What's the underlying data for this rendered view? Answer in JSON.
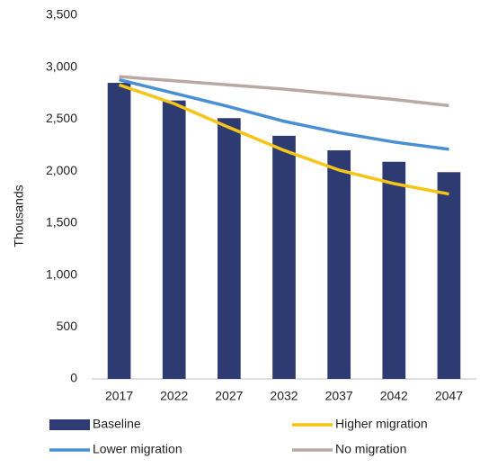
{
  "chart_data": {
    "type": "combo",
    "y_label": "Thousands",
    "categories": [
      "2017",
      "2022",
      "2027",
      "2032",
      "2037",
      "2042",
      "2047"
    ],
    "series": [
      {
        "name": "Baseline",
        "type": "bar",
        "color": "#2e3a72",
        "values": [
          2850,
          2680,
          2510,
          2340,
          2200,
          2090,
          1990
        ]
      },
      {
        "name": "Higher migration",
        "type": "line",
        "color": "#f5c518",
        "values": [
          2830,
          2650,
          2420,
          2200,
          2010,
          1880,
          1780
        ]
      },
      {
        "name": "Lower migration",
        "type": "line",
        "color": "#4a8fd4",
        "values": [
          2880,
          2750,
          2620,
          2480,
          2370,
          2280,
          2210
        ]
      },
      {
        "name": "No migration",
        "type": "line",
        "color": "#b8a9a4",
        "values": [
          2910,
          2870,
          2830,
          2790,
          2740,
          2690,
          2630
        ]
      }
    ],
    "ylim": [
      0,
      3500
    ],
    "yticks": [
      0,
      500,
      {
        "value": 1000,
        "label": "1,000"
      },
      {
        "value": 1500,
        "label": "1,500"
      },
      {
        "value": 2000,
        "label": "2,000"
      },
      {
        "value": 2500,
        "label": "2,500"
      },
      {
        "value": 3000,
        "label": "3,000"
      },
      {
        "value": 3500,
        "label": "3,500"
      }
    ],
    "grid": false,
    "legend": "bottom"
  }
}
